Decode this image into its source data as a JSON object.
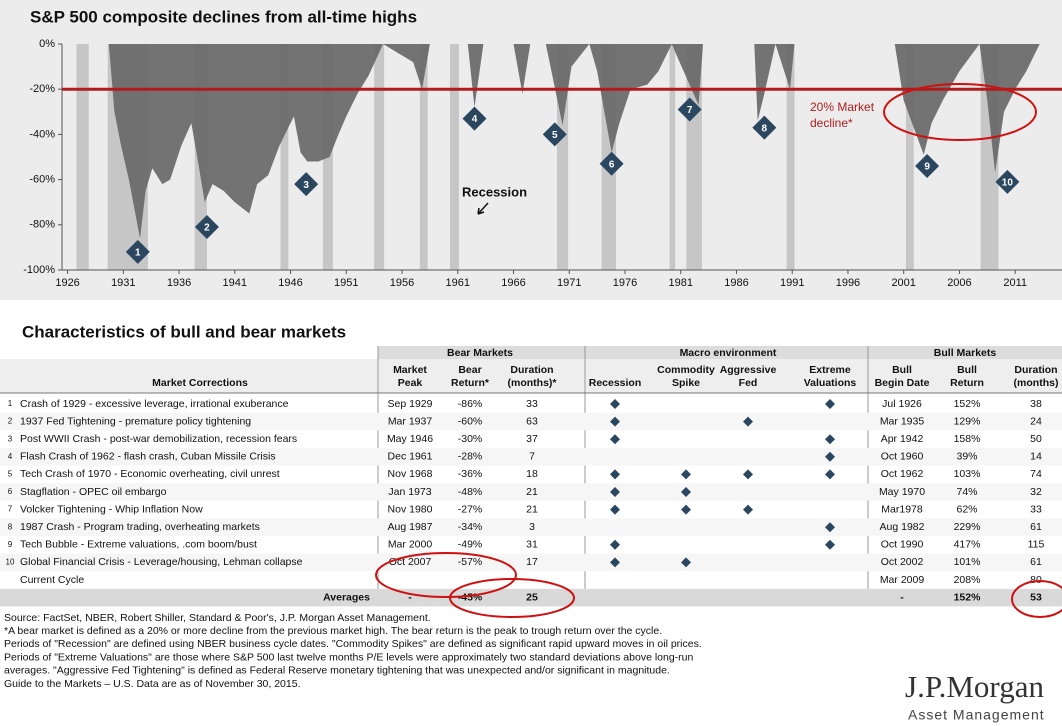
{
  "chart_data": {
    "type": "area",
    "title": "S&P 500 composite declines from all-time highs",
    "x": [
      1926,
      1928,
      1929.7,
      1930.2,
      1930.8,
      1931.5,
      1932.5,
      1933,
      1933.6,
      1934.5,
      1935.2,
      1936.2,
      1937.1,
      1937.8,
      1938.3,
      1939,
      1940,
      1941,
      1942.3,
      1943,
      1944,
      1945,
      1946.3,
      1946.9,
      1947.5,
      1948.5,
      1949.5,
      1950.3,
      1951,
      1952,
      1953,
      1954.3,
      1957,
      1957.8,
      1958.5,
      1961.9,
      1962.5,
      1963.3,
      1966,
      1966.8,
      1967.5,
      1968.9,
      1970.4,
      1971.2,
      1972.8,
      1973.5,
      1974.8,
      1975.5,
      1976.5,
      1978,
      1979,
      1980.2,
      1980.9,
      1982.6,
      1983,
      1987.6,
      1987.9,
      1988.5,
      1989.5,
      1990.8,
      1991.2,
      2000.2,
      2001,
      2002.8,
      2003.5,
      2004.5,
      2006,
      2007.8,
      2008.5,
      2009.2,
      2010,
      2011,
      2012,
      2013.2,
      2015.5
    ],
    "values": [
      0,
      0,
      0,
      -30,
      -45,
      -60,
      -86,
      -65,
      -55,
      -62,
      -60,
      -45,
      -35,
      -55,
      -70,
      -62,
      -65,
      -70,
      -75,
      -62,
      -58,
      -45,
      -32,
      -48,
      -52,
      -52,
      -50,
      -40,
      -32,
      -22,
      -14,
      0,
      -8,
      -20,
      0,
      0,
      -28,
      0,
      0,
      -22,
      0,
      0,
      -36,
      -10,
      0,
      -12,
      -48,
      -35,
      -20,
      -18,
      -12,
      0,
      -8,
      -27,
      0,
      0,
      -34,
      -22,
      0,
      -20,
      0,
      0,
      -25,
      -49,
      -35,
      -25,
      -12,
      0,
      -25,
      -57,
      -30,
      -20,
      -12,
      0,
      0
    ],
    "xlim": [
      1925.5,
      2015.2
    ],
    "ylim": [
      -100,
      0
    ],
    "xticks": [
      1926,
      1931,
      1936,
      1941,
      1946,
      1951,
      1956,
      1961,
      1966,
      1971,
      1976,
      1981,
      1986,
      1991,
      1996,
      2001,
      2006,
      2011
    ],
    "yticks": [
      {
        "value": 0,
        "label": "0%"
      },
      {
        "value": -20,
        "label": "-20%"
      },
      {
        "value": -40,
        "label": "-40%"
      },
      {
        "value": -60,
        "label": "-60%"
      },
      {
        "value": -80,
        "label": "-80%"
      },
      {
        "value": -100,
        "label": "-100%"
      }
    ],
    "color": "#666666",
    "recession_color": "#c6c6c6",
    "recessions": [
      [
        1926.8,
        1927.9
      ],
      [
        1929.6,
        1933.2
      ],
      [
        1937.4,
        1938.5
      ],
      [
        1945.1,
        1945.8
      ],
      [
        1948.9,
        1949.8
      ],
      [
        1953.5,
        1954.4
      ],
      [
        1957.6,
        1958.3
      ],
      [
        1960.3,
        1961.1
      ],
      [
        1969.9,
        1970.9
      ],
      [
        1973.9,
        1975.2
      ],
      [
        1980,
        1980.5
      ],
      [
        1981.5,
        1982.9
      ],
      [
        1990.5,
        1991.2
      ],
      [
        2001.2,
        2001.9
      ],
      [
        2007.9,
        2009.5
      ]
    ],
    "reference_line": {
      "value": -20,
      "color": "#b01c1c",
      "label": "20% Market decline*"
    },
    "recession_label": "Recession",
    "markers": [
      {
        "label": "1",
        "x": 1932.3,
        "y": -92
      },
      {
        "label": "2",
        "x": 1938.5,
        "y": -81
      },
      {
        "label": "3",
        "x": 1947.4,
        "y": -62
      },
      {
        "label": "4",
        "x": 1962.5,
        "y": -33
      },
      {
        "label": "5",
        "x": 1969.7,
        "y": -40
      },
      {
        "label": "6",
        "x": 1974.8,
        "y": -53
      },
      {
        "label": "7",
        "x": 1981.8,
        "y": -29
      },
      {
        "label": "8",
        "x": 1988.5,
        "y": -37
      },
      {
        "label": "9",
        "x": 2003.1,
        "y": -54
      },
      {
        "label": "10",
        "x": 2010.3,
        "y": -61
      }
    ],
    "marker_color": "#2b4760"
  },
  "table": {
    "title": "Characteristics of bull and bear markets",
    "groups": [
      "Bear Markets",
      "Macro environment",
      "Bull Markets"
    ],
    "row_header": "Market Corrections",
    "columns": [
      [
        "Market",
        "Peak"
      ],
      [
        "Bear",
        "Return*"
      ],
      [
        "Duration",
        "(months)*"
      ],
      [
        "Recession"
      ],
      [
        "Commodity",
        "Spike"
      ],
      [
        "Aggressive",
        "Fed"
      ],
      [
        "Extreme",
        "Valuations"
      ],
      [
        "Bull",
        "Begin Date"
      ],
      [
        "Bull",
        "Return"
      ],
      [
        "Duration",
        "(months)"
      ]
    ],
    "rows": [
      {
        "num": "1",
        "name": "Crash of 1929 - excessive leverage, irrational exuberance",
        "cells": [
          "Sep 1929",
          "-86%",
          "33",
          "Jul 1926",
          "152%",
          "38"
        ],
        "flags": [
          true,
          false,
          false,
          true
        ]
      },
      {
        "num": "2",
        "name": "1937 Fed Tightening - premature policy tightening",
        "cells": [
          "Mar 1937",
          "-60%",
          "63",
          "Mar 1935",
          "129%",
          "24"
        ],
        "flags": [
          true,
          false,
          true,
          false
        ]
      },
      {
        "num": "3",
        "name": "Post WWII Crash - post-war demobilization, recession fears",
        "cells": [
          "May 1946",
          "-30%",
          "37",
          "Apr 1942",
          "158%",
          "50"
        ],
        "flags": [
          true,
          false,
          false,
          true
        ]
      },
      {
        "num": "4",
        "name": "Flash Crash of 1962 - flash crash, Cuban Missile Crisis",
        "cells": [
          "Dec 1961",
          "-28%",
          "7",
          "Oct 1960",
          "39%",
          "14"
        ],
        "flags": [
          false,
          false,
          false,
          true
        ]
      },
      {
        "num": "5",
        "name": "Tech Crash of 1970 - Economic overheating, civil unrest",
        "cells": [
          "Nov 1968",
          "-36%",
          "18",
          "Oct 1962",
          "103%",
          "74"
        ],
        "flags": [
          true,
          true,
          true,
          true
        ]
      },
      {
        "num": "6",
        "name": "Stagflation - OPEC oil embargo",
        "cells": [
          "Jan 1973",
          "-48%",
          "21",
          "May 1970",
          "74%",
          "32"
        ],
        "flags": [
          true,
          true,
          false,
          false
        ]
      },
      {
        "num": "7",
        "name": "Volcker Tightening - Whip Inflation Now",
        "cells": [
          "Nov 1980",
          "-27%",
          "21",
          "Mar1978",
          "62%",
          "33"
        ],
        "flags": [
          true,
          true,
          true,
          false
        ]
      },
      {
        "num": "8",
        "name": "1987 Crash - Program trading, overheating markets",
        "cells": [
          "Aug 1987",
          "-34%",
          "3",
          "Aug 1982",
          "229%",
          "61"
        ],
        "flags": [
          false,
          false,
          false,
          true
        ]
      },
      {
        "num": "9",
        "name": "Tech Bubble - Extreme valuations, .com boom/bust",
        "cells": [
          "Mar 2000",
          "-49%",
          "31",
          "Oct 1990",
          "417%",
          "115"
        ],
        "flags": [
          true,
          false,
          false,
          true
        ]
      },
      {
        "num": "10",
        "name": "Global Financial Crisis - Leverage/housing, Lehman collapse",
        "cells": [
          "Oct 2007",
          "-57%",
          "17",
          "Oct 2002",
          "101%",
          "61"
        ],
        "flags": [
          true,
          true,
          false,
          false
        ]
      },
      {
        "name": "Current Cycle",
        "cells": [
          "",
          "",
          "",
          "Mar 2009",
          "208%",
          "80"
        ],
        "flags": [
          false,
          false,
          false,
          false
        ]
      }
    ],
    "averages": {
      "name": "Averages",
      "cells": [
        "-",
        "-45%",
        "25",
        "-",
        "152%",
        "53"
      ]
    }
  },
  "footnotes": [
    "Source: FactSet, NBER, Robert Shiller, Standard & Poor's, J.P. Morgan Asset Management.",
    "*A bear market is defined as a 20% or more decline from the previous market high. The bear return is the peak to trough return over the cycle.",
    "Periods of \"Recession\" are defined using NBER business cycle dates. \"Commodity Spikes\" are defined as significant rapid upward moves in oil prices.",
    "Periods of \"Extreme Valuations\" are those where S&P 500 last twelve months P/E levels were approximately two standard deviations above long-run",
    "averages. \"Aggressive Fed Tightening\" is defined as Federal Reserve monetary tightening that was unexpected and/or significant in magnitude.",
    "Guide to the Markets – U.S. Data are as of November 30, 2015."
  ],
  "logo": {
    "name": "J.P.Morgan",
    "sub": "Asset Management"
  }
}
